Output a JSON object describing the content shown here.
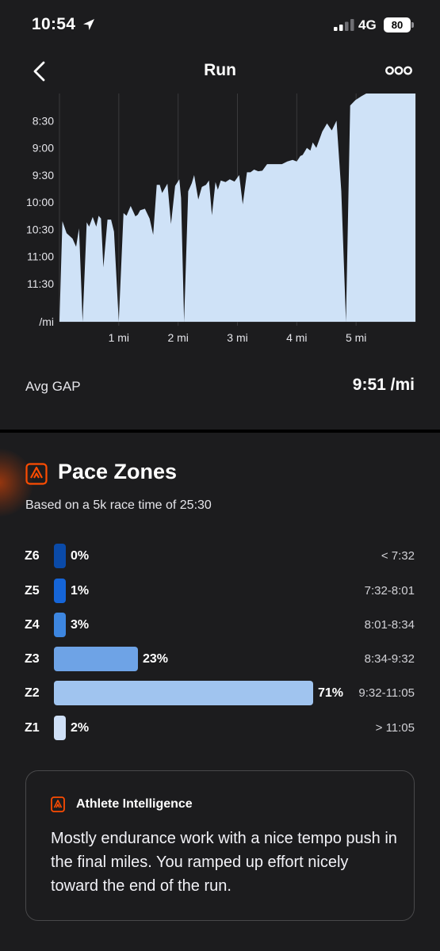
{
  "status_bar": {
    "time": "10:54",
    "network": "4G",
    "battery": "80"
  },
  "nav": {
    "title": "Run",
    "back_icon": "chevron-left-icon",
    "more_icon": "more-icon"
  },
  "chart_data": {
    "type": "area",
    "xlabel": "",
    "ylabel": "",
    "x_tick_labels": [
      "1 mi",
      "2 mi",
      "3 mi",
      "4 mi",
      "5 mi"
    ],
    "x_tick_values": [
      1,
      2,
      3,
      4,
      5
    ],
    "y_tick_labels": [
      "8:30",
      "9:00",
      "9:30",
      "10:00",
      "10:30",
      "11:00",
      "11:30",
      "/mi"
    ],
    "y_unit": "min/mi",
    "ylim": [
      12.2,
      8.0
    ],
    "xlim": [
      0,
      6.0
    ],
    "color": "#cfe2f7",
    "x": [
      0.0,
      0.05,
      0.12,
      0.22,
      0.28,
      0.33,
      0.39,
      0.46,
      0.5,
      0.56,
      0.62,
      0.66,
      0.7,
      0.74,
      0.81,
      0.87,
      0.92,
      1.0,
      1.08,
      1.13,
      1.2,
      1.28,
      1.32,
      1.36,
      1.44,
      1.52,
      1.58,
      1.64,
      1.69,
      1.73,
      1.82,
      1.88,
      1.95,
      2.02,
      2.05,
      2.1,
      2.17,
      2.23,
      2.27,
      2.34,
      2.4,
      2.47,
      2.52,
      2.57,
      2.63,
      2.67,
      2.72,
      2.8,
      2.87,
      2.95,
      3.03,
      3.09,
      3.16,
      3.22,
      3.28,
      3.35,
      3.42,
      3.5,
      3.58,
      3.66,
      3.75,
      3.84,
      3.93,
      4.0,
      4.06,
      4.1,
      4.17,
      4.23,
      4.27,
      4.33,
      4.43,
      4.51,
      4.59,
      4.67,
      4.75,
      4.83,
      4.9,
      4.99,
      5.09,
      5.17,
      5.25,
      5.32,
      5.38,
      5.44,
      5.51,
      5.57,
      5.62,
      5.66,
      5.7,
      5.74,
      5.79,
      5.86,
      5.92,
      5.97,
      6.0
    ],
    "y": [
      12.2,
      10.35,
      10.57,
      10.67,
      10.82,
      10.48,
      12.2,
      10.37,
      10.45,
      10.27,
      10.45,
      10.25,
      10.3,
      11.2,
      10.32,
      10.32,
      10.54,
      12.2,
      10.2,
      10.25,
      10.07,
      10.26,
      10.23,
      10.15,
      10.12,
      10.3,
      10.6,
      9.68,
      9.68,
      9.83,
      9.66,
      10.4,
      9.7,
      9.58,
      9.92,
      12.2,
      9.8,
      9.65,
      9.5,
      9.95,
      9.72,
      9.68,
      9.6,
      10.24,
      9.63,
      9.77,
      9.6,
      9.63,
      9.58,
      9.62,
      9.5,
      10.04,
      9.45,
      9.45,
      9.4,
      9.43,
      9.42,
      9.3,
      9.3,
      9.3,
      9.3,
      9.25,
      9.22,
      9.25,
      9.15,
      9.13,
      9.0,
      9.05,
      8.9,
      9.0,
      8.7,
      8.55,
      8.68,
      8.5,
      9.8,
      12.2,
      8.22,
      8.12,
      8.05,
      8.0,
      8.0,
      8.0,
      8.0,
      8.0,
      8.0,
      8.0,
      8.0,
      8.0,
      8.0,
      8.0,
      8.0,
      8.0,
      8.0,
      8.0,
      8.0
    ],
    "grid": true
  },
  "summary": {
    "avg_gap_label": "Avg GAP",
    "avg_gap_value": "9:51 /mi"
  },
  "pace_zones": {
    "icon": "strava-bolt-icon",
    "title": "Pace Zones",
    "subtitle": "Based on a 5k race time of 25:30",
    "zones": [
      {
        "label": "Z6",
        "percent": 0,
        "percent_text": "0%",
        "range": "< 7:32",
        "color": "#0a4aa8"
      },
      {
        "label": "Z5",
        "percent": 1,
        "percent_text": "1%",
        "range": "7:32-8:01",
        "color": "#1565d8"
      },
      {
        "label": "Z4",
        "percent": 3,
        "percent_text": "3%",
        "range": "8:01-8:34",
        "color": "#3d86e0"
      },
      {
        "label": "Z3",
        "percent": 23,
        "percent_text": "23%",
        "range": "8:34-9:32",
        "color": "#6ea3e6"
      },
      {
        "label": "Z2",
        "percent": 71,
        "percent_text": "71%",
        "range": "9:32-11:05",
        "color": "#a0c4ef"
      },
      {
        "label": "Z1",
        "percent": 2,
        "percent_text": "2%",
        "range": "> 11:05",
        "color": "#cfe0f7"
      }
    ]
  },
  "athlete_intelligence": {
    "icon": "strava-bolt-icon",
    "title": "Athlete Intelligence",
    "text": "Mostly endurance work with a nice tempo push in the final miles. You ramped up effort nicely toward the end of the run."
  }
}
